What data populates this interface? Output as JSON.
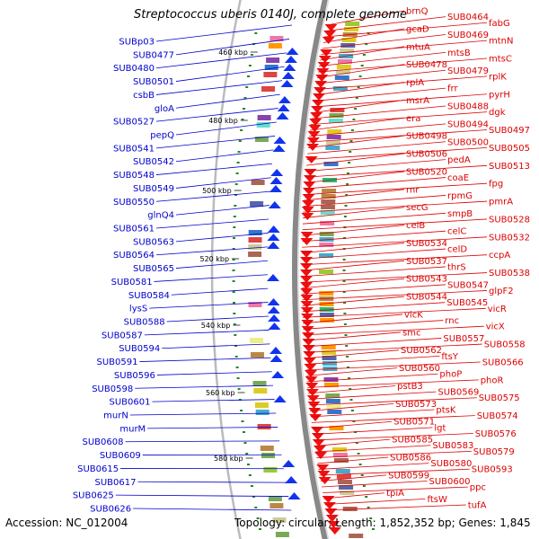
{
  "header": {
    "title": "Streptococcus uberis 0140J, complete genome"
  },
  "footer": {
    "accession": "Accession: NC_012004",
    "summary": "Topology: circular; Length: 1,852,352 bp; Genes: 1,845"
  },
  "ticks": [
    "460 kbp",
    "480 kbp",
    "500 kbp",
    "520 kbp",
    "540 kbp",
    "560 kbp",
    "580 kbp"
  ],
  "minus_strand_labels": [
    "SUBp03",
    "SUB0477",
    "SUB0480",
    "SUB0501",
    "csbB",
    "gloA",
    "SUB0527",
    "pepQ",
    "SUB0541",
    "SUB0542",
    "SUB0548",
    "SUB0549",
    "SUB0550",
    "glnQ4",
    "SUB0561",
    "SUB0563",
    "SUB0564",
    "SUB0565",
    "SUB0581",
    "SUB0584",
    "lysS",
    "SUB0588",
    "SUB0587",
    "SUB0594",
    "SUB0591",
    "SUB0596",
    "SUB0598",
    "SUB0601",
    "murN",
    "murM",
    "SUB0608",
    "SUB0609",
    "SUB0615",
    "SUB0617",
    "SUB0625",
    "SUB0626"
  ],
  "plus_strand_labels": [
    "brnQ",
    "SUB0464",
    "fabG",
    "gcaD",
    "SUB0469",
    "mtnN",
    "mtuA",
    "mtsB",
    "mtsC",
    "SUB0478",
    "SUB0479",
    "rplK",
    "rplA",
    "frr",
    "pyrH",
    "msrA",
    "SUB0488",
    "dgk",
    "era",
    "SUB0494",
    "SUB0497",
    "SUB0498",
    "SUB0500",
    "SUB0505",
    "SUB0506",
    "pedA",
    "SUB0513",
    "SUB0520",
    "coaE",
    "fpg",
    "rnr",
    "rpmG",
    "pmrA",
    "secG",
    "smpB",
    "SUB0528",
    "celB",
    "celC",
    "SUB0532",
    "SUB0534",
    "celD",
    "ccpA",
    "SUB0537",
    "thrS",
    "SUB0538",
    "SUB0543",
    "SUB0547",
    "glpF2",
    "SUB0544",
    "SUB0545",
    "vicR",
    "vicK",
    "rnc",
    "vicX",
    "smc",
    "SUB0557",
    "SUB0558",
    "SUB0562",
    "ftsY",
    "SUB0566",
    "SUB0560",
    "phoP",
    "phoR",
    "pstB3",
    "SUB0569",
    "SUB0575",
    "SUB0573",
    "ptsK",
    "SUB0574",
    "SUB0571",
    "lgt",
    "SUB0576",
    "SUB0585",
    "SUB0583",
    "SUB0579",
    "SUB0586",
    "SUB0580",
    "SUB0593",
    "SUB0599",
    "SUB0600",
    "ppc",
    "tpiA",
    "ftsW",
    "tufA"
  ],
  "colors": {
    "plus_strand": "#ee1111",
    "minus_strand": "#1133ee",
    "plus_label": "#dd0000",
    "minus_label": "#0000cc",
    "backbone": "#888888",
    "tick_mark": "#228822"
  }
}
